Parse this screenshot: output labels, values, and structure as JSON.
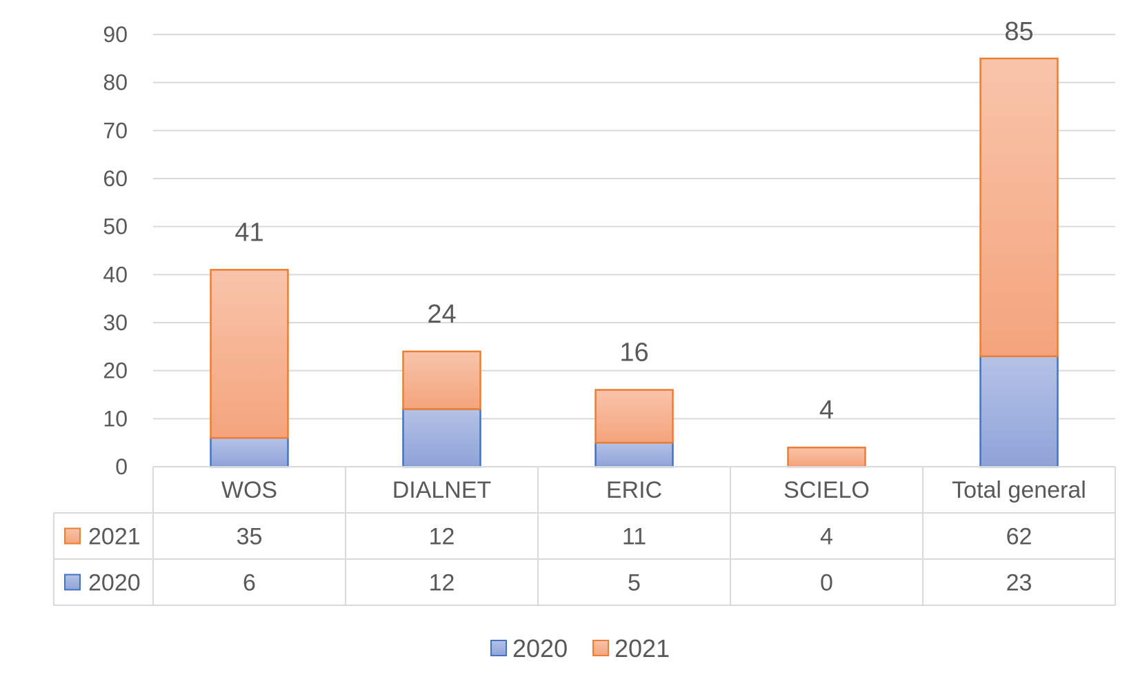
{
  "chart_data": {
    "type": "bar",
    "stacked": true,
    "categories": [
      "WOS",
      "DIALNET",
      "ERIC",
      "SCIELO",
      "Total general"
    ],
    "series": [
      {
        "name": "2020",
        "values": [
          6,
          12,
          5,
          0,
          23
        ]
      },
      {
        "name": "2021",
        "values": [
          35,
          12,
          11,
          4,
          62
        ]
      }
    ],
    "totals": [
      41,
      24,
      16,
      4,
      85
    ],
    "yticks": [
      0,
      10,
      20,
      30,
      40,
      50,
      60,
      70,
      80,
      90
    ],
    "ylim": [
      0,
      90
    ],
    "grid": true,
    "data_table": true,
    "legend": {
      "placement": "bottom",
      "entries": [
        "2020",
        "2021"
      ]
    },
    "colors": {
      "2020_fill_top": "#b4c2e6",
      "2020_fill_bottom": "#8fa3d8",
      "2020_border": "#4472c4",
      "2021_fill_top": "#f8c4aa",
      "2021_fill_bottom": "#f4a47c",
      "2021_border": "#ed7d31",
      "grid": "#d9d9d9",
      "text": "#595959"
    }
  }
}
